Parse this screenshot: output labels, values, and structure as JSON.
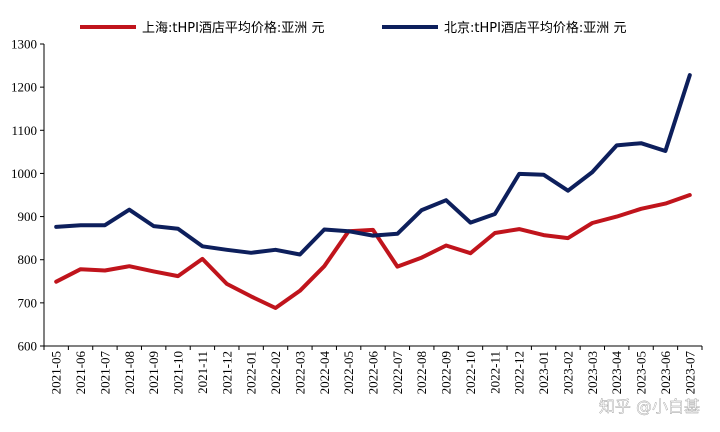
{
  "chart_data": {
    "type": "line",
    "title": "",
    "xlabel": "",
    "ylabel": "",
    "ylim": [
      600,
      1300
    ],
    "yticks": [
      600,
      700,
      800,
      900,
      1000,
      1100,
      1200,
      1300
    ],
    "grid": false,
    "legend_position": "top",
    "categories": [
      "2021-05",
      "2021-06",
      "2021-07",
      "2021-08",
      "2021-09",
      "2021-10",
      "2021-11",
      "2021-12",
      "2022-01",
      "2022-02",
      "2022-03",
      "2022-04",
      "2022-05",
      "2022-06",
      "2022-07",
      "2022-08",
      "2022-09",
      "2022-10",
      "2022-11",
      "2022-12",
      "2023-01",
      "2023-02",
      "2023-03",
      "2023-04",
      "2023-05",
      "2023-06",
      "2023-07"
    ],
    "series": [
      {
        "name": "上海:tHPI酒店平均价格:亚洲 元",
        "color": "#c0141c",
        "values": [
          749,
          778,
          775,
          785,
          773,
          762,
          802,
          744,
          715,
          688,
          728,
          785,
          866,
          869,
          784,
          805,
          833,
          815,
          862,
          871,
          857,
          850,
          885,
          900,
          918,
          930,
          950
        ]
      },
      {
        "name": "北京:tHPI酒店平均价格:亚洲 元",
        "color": "#0d1f5c",
        "values": [
          876,
          880,
          880,
          916,
          878,
          872,
          831,
          823,
          816,
          823,
          812,
          870,
          866,
          856,
          860,
          915,
          938,
          886,
          906,
          999,
          997,
          960,
          1003,
          1065,
          1070,
          1052,
          1228
        ]
      }
    ]
  },
  "watermark": "知乎 @小白基"
}
